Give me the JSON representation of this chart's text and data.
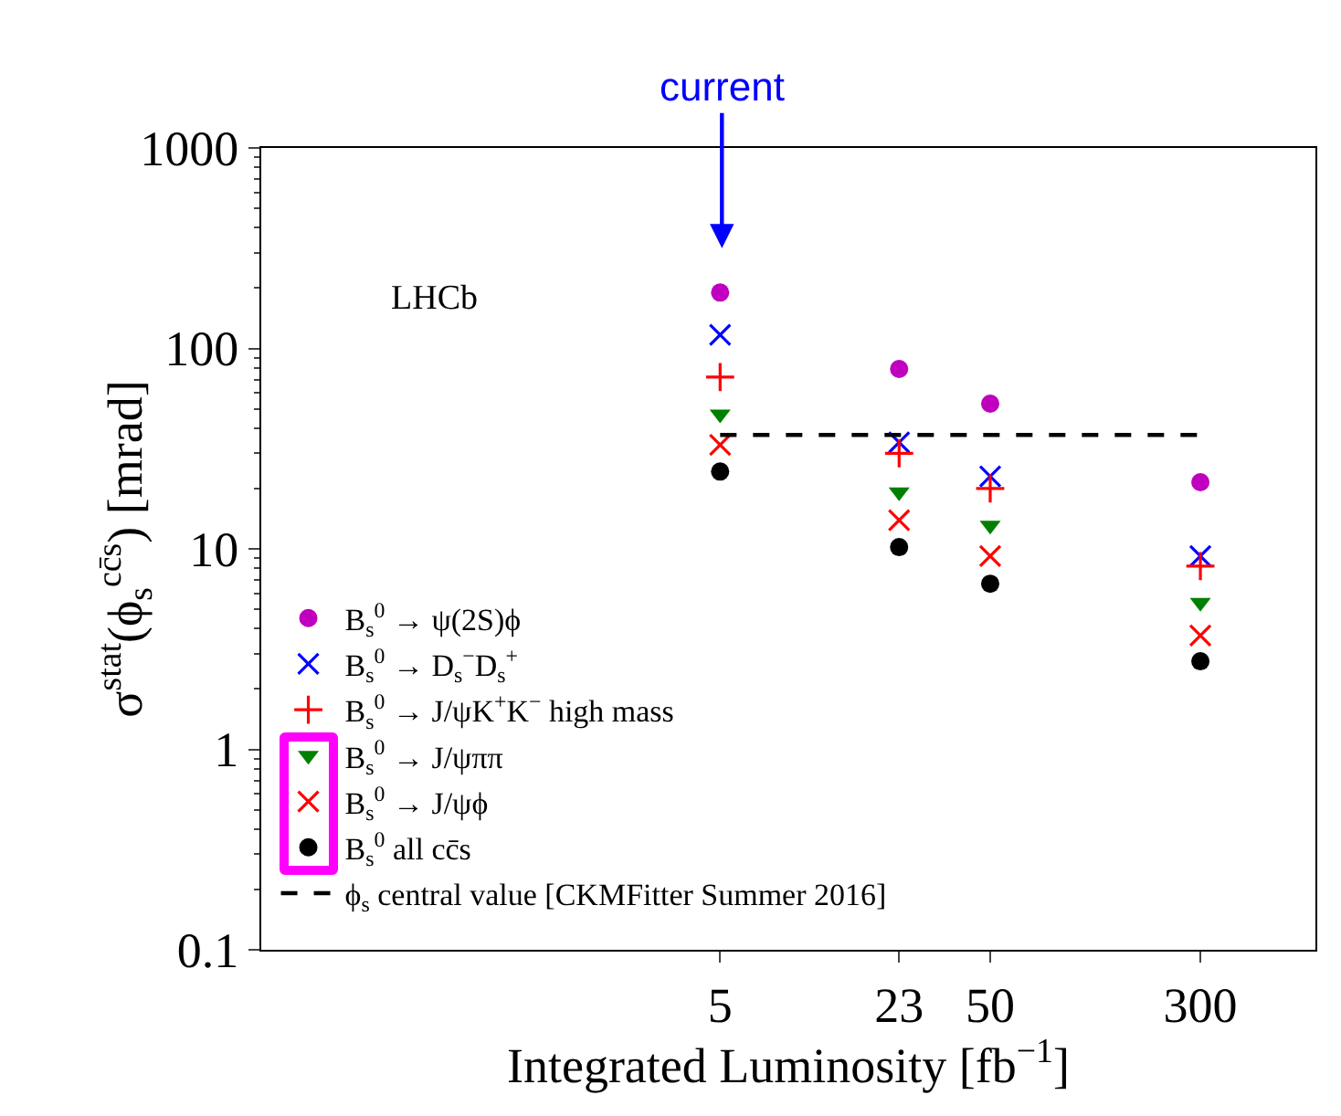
{
  "chart_data": {
    "type": "scatter",
    "xlabel": "Integrated Luminosity [fb$^{−1}$]",
    "ylabel": "σ$^{stat}$(ϕ$_{s}$$^{cc̄s}$) [mrad]",
    "annotations": [
      "LHCb",
      "current"
    ],
    "x": [
      5,
      23,
      50,
      300
    ],
    "log": "xy",
    "xlim": [
      0.1,
      800
    ],
    "xticks": [
      5,
      23,
      50,
      300
    ],
    "ylim": [
      0.1,
      1000
    ],
    "yticks": [
      0.1,
      1,
      10,
      100,
      1000
    ],
    "grid": false,
    "legend": "bottom left",
    "series": [
      {
        "name": "B$_{s}$$^{0}$ → ψ(2S)ϕ",
        "color": "#bf00bf",
        "marker": "circle",
        "values": [
          190,
          79,
          53,
          21.5
        ]
      },
      {
        "name": "B$_{s}$$^{0}$ → D$_{s}$$^{−}$D$_{s}$$^{+}$",
        "color": "#0000ff",
        "marker": "x",
        "values": [
          117,
          34,
          23,
          9.2
        ]
      },
      {
        "name": "B$_{s}$$^{0}$ → J/ψK$^{+}$K$^{−}$ high mass",
        "color": "#ff0000",
        "marker": "cross",
        "values": [
          72,
          30,
          20,
          8.2
        ]
      },
      {
        "name": "B$_{s}$$^{0}$ → J/ψππ",
        "color": "#008000",
        "marker": "triangle",
        "values": [
          47,
          19.2,
          13.1,
          5.4
        ]
      },
      {
        "name": "B$_{s}$$^{0}$ → J/ψϕ",
        "color": "#ff0000",
        "marker": "x",
        "values": [
          33,
          13.9,
          9.2,
          3.7
        ]
      },
      {
        "name": "B$_{s}$$^{0}$ all cc̄s",
        "color": "#000000",
        "marker": "circle",
        "values": [
          24.3,
          10.2,
          6.7,
          2.75
        ]
      },
      {
        "name": "ϕ$_{s}$ central value [CKMFitter Summer 2016]",
        "type": "line",
        "color": "#000000",
        "marker": "none",
        "line_style": "dashed",
        "x": [
          5,
          300
        ],
        "values": [
          37,
          37
        ]
      }
    ]
  }
}
